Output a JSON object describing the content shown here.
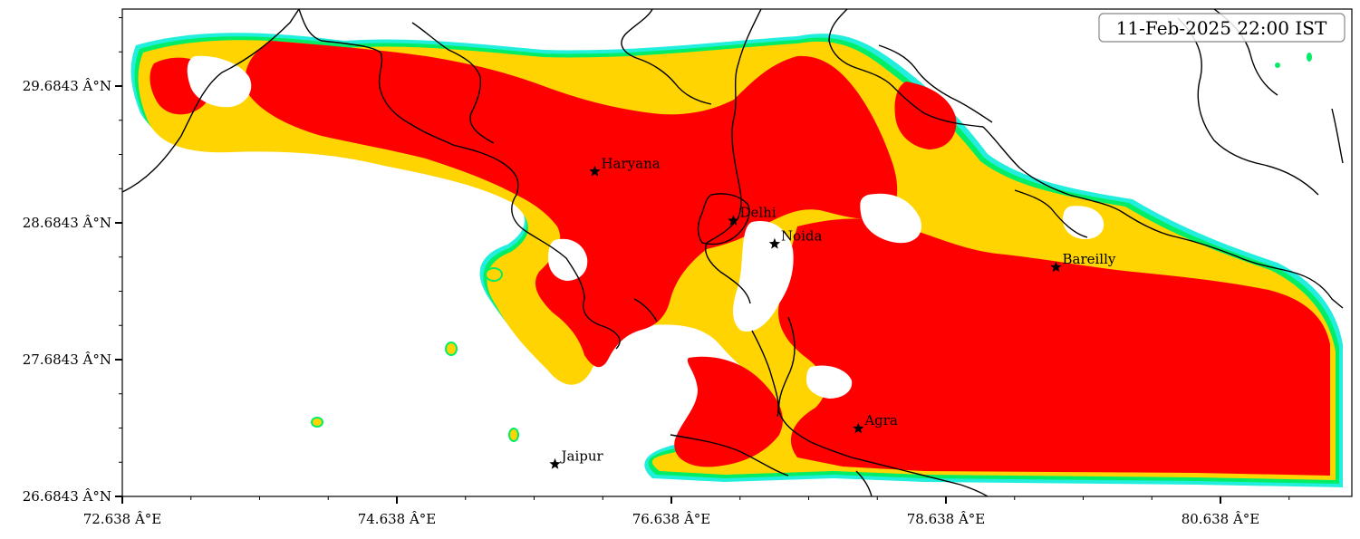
{
  "timestamp": "11-Feb-2025 22:00 IST",
  "axes": {
    "x_ticks": [
      "72.638 Â°E",
      "74.638 Â°E",
      "76.638 Â°E",
      "78.638 Â°E",
      "80.638 Â°E"
    ],
    "y_ticks": [
      "29.6843 Â°N",
      "28.6843 Â°N",
      "27.6843 Â°N",
      "26.6843 Â°N"
    ]
  },
  "cities": [
    {
      "name": "Haryana",
      "lon": 76.08,
      "lat": 29.06
    },
    {
      "name": "Delhi",
      "lon": 77.09,
      "lat": 28.7
    },
    {
      "name": "Noida",
      "lon": 77.39,
      "lat": 28.53
    },
    {
      "name": "Bareilly",
      "lon": 79.44,
      "lat": 28.36
    },
    {
      "name": "Agra",
      "lon": 78.0,
      "lat": 27.18
    },
    {
      "name": "Jaipur",
      "lon": 75.79,
      "lat": 26.92
    }
  ],
  "colors": {
    "high": "#ff0000",
    "medium": "#ffd400",
    "edge_green": "#00ee66",
    "edge_cyan": "#22eedd",
    "boundary": "#000000"
  }
}
